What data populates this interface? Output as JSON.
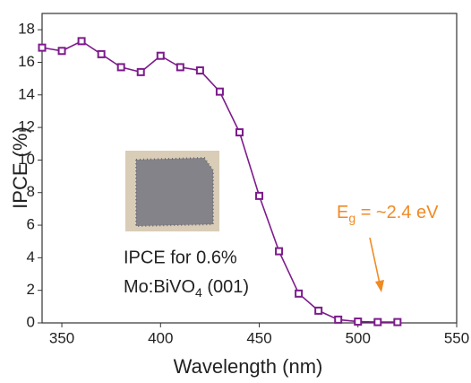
{
  "chart_data": {
    "type": "line",
    "x_label": "Wavelength (nm)",
    "y_label": "IPCE (%)",
    "x": [
      340,
      350,
      360,
      370,
      380,
      390,
      400,
      410,
      420,
      430,
      440,
      450,
      460,
      470,
      480,
      490,
      500,
      510,
      520
    ],
    "series": [
      {
        "name": "IPCE",
        "color": "#7d1b8c",
        "values": [
          16.9,
          16.7,
          17.3,
          16.5,
          15.7,
          15.4,
          16.4,
          15.7,
          15.5,
          14.2,
          11.7,
          7.8,
          4.4,
          1.8,
          0.75,
          0.2,
          0.08,
          0.05,
          0.05
        ]
      }
    ],
    "xlim": [
      340,
      550
    ],
    "ylim": [
      0,
      19
    ],
    "xticks": [
      350,
      400,
      450,
      500,
      550
    ],
    "yticks": [
      0,
      2,
      4,
      6,
      8,
      10,
      12,
      14,
      16,
      18
    ],
    "annotations": {
      "sample": {
        "line1": "IPCE for 0.6%",
        "line2_a": "Mo:BiVO",
        "line2_sub": "4",
        "line2_b": " (001)"
      },
      "gap": {
        "a": "E",
        "sub": "g",
        "b": " = ~2.4 eV",
        "color": "#f08a24"
      }
    }
  }
}
